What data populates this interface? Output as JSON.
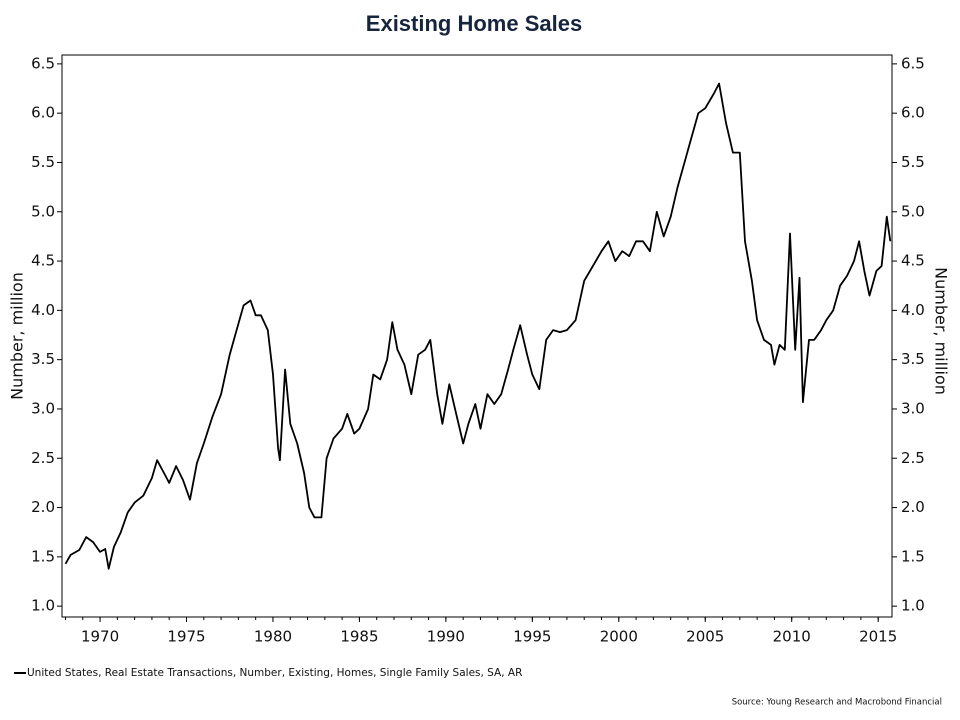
{
  "chart_data": {
    "type": "line",
    "title": "Existing Home Sales",
    "y_label": "Number, million",
    "y2_label": "Number, million",
    "source": "Source: Young Research and Macrobond Financial",
    "xlim": [
      1967.8,
      2015.8
    ],
    "ylim": [
      0.89,
      6.59
    ],
    "y2lim": [
      0.89,
      6.59
    ],
    "xticks": [
      1970,
      1975,
      1980,
      1985,
      1990,
      1995,
      2000,
      2005,
      2010,
      2015
    ],
    "yticks": [
      {
        "value": 1,
        "label": "1.0"
      },
      1.5,
      {
        "value": 2,
        "label": "2.0"
      },
      2.5,
      {
        "value": 3,
        "label": "3.0"
      },
      3.5,
      {
        "value": 4,
        "label": "4.0"
      },
      4.5,
      {
        "value": 5,
        "label": "5.0"
      },
      5.5,
      {
        "value": 6,
        "label": "6.0"
      },
      6.5
    ],
    "y2ticks": [
      {
        "value": 1,
        "label": "1.0"
      },
      1.5,
      {
        "value": 2,
        "label": "2.0"
      },
      2.5,
      {
        "value": 3,
        "label": "3.0"
      },
      3.5,
      {
        "value": 4,
        "label": "4.0"
      },
      4.5,
      {
        "value": 5,
        "label": "5.0"
      },
      5.5,
      {
        "value": 6,
        "label": "6.0"
      },
      6.5
    ],
    "x": [
      1968.0,
      1968.3,
      1968.8,
      1969.2,
      1969.6,
      1970.0,
      1970.3,
      1970.5,
      1970.8,
      1971.2,
      1971.6,
      1972.0,
      1972.5,
      1973.0,
      1973.3,
      1973.7,
      1974.0,
      1974.4,
      1974.8,
      1975.2,
      1975.6,
      1976.0,
      1976.5,
      1977.0,
      1977.5,
      1977.9,
      1978.3,
      1978.7,
      1979.0,
      1979.3,
      1979.7,
      1980.0,
      1980.3,
      1980.4,
      1980.7,
      1981.0,
      1981.4,
      1981.8,
      1982.1,
      1982.4,
      1982.8,
      1983.1,
      1983.5,
      1984.0,
      1984.3,
      1984.7,
      1985.0,
      1985.5,
      1985.8,
      1986.2,
      1986.6,
      1986.9,
      1987.2,
      1987.6,
      1988.0,
      1988.4,
      1988.8,
      1989.1,
      1989.5,
      1989.8,
      1990.2,
      1990.6,
      1991.0,
      1991.3,
      1991.7,
      1992.0,
      1992.4,
      1992.8,
      1993.2,
      1993.6,
      1993.9,
      1994.3,
      1994.7,
      1995.0,
      1995.4,
      1995.8,
      1996.2,
      1996.6,
      1997.0,
      1997.5,
      1998.0,
      1998.5,
      1999.0,
      1999.4,
      1999.8,
      2000.2,
      2000.6,
      2001.0,
      2001.4,
      2001.8,
      2002.2,
      2002.6,
      2003.0,
      2003.4,
      2003.8,
      2004.2,
      2004.6,
      2005.0,
      2005.5,
      2005.8,
      2006.2,
      2006.6,
      2007.0,
      2007.3,
      2007.7,
      2008.0,
      2008.4,
      2008.8,
      2009.0,
      2009.3,
      2009.6,
      2009.9,
      2010.2,
      2010.45,
      2010.65,
      2011.0,
      2011.3,
      2011.7,
      2012.0,
      2012.4,
      2012.8,
      2013.2,
      2013.6,
      2013.9,
      2014.2,
      2014.5,
      2014.9,
      2015.2,
      2015.5,
      2015.7
    ],
    "series": [
      {
        "name": "United States, Real Estate Transactions, Number, Existing, Homes, Single Family Sales, SA, AR",
        "color": "#000000",
        "values": [
          1.43,
          1.52,
          1.57,
          1.7,
          1.65,
          1.55,
          1.58,
          1.38,
          1.6,
          1.75,
          1.95,
          2.05,
          2.12,
          2.3,
          2.48,
          2.35,
          2.25,
          2.42,
          2.28,
          2.08,
          2.45,
          2.65,
          2.92,
          3.15,
          3.55,
          3.8,
          4.05,
          4.1,
          3.95,
          3.95,
          3.8,
          3.35,
          2.6,
          2.48,
          3.4,
          2.85,
          2.65,
          2.35,
          2.0,
          1.9,
          1.9,
          2.5,
          2.7,
          2.8,
          2.95,
          2.75,
          2.8,
          3.0,
          3.35,
          3.3,
          3.5,
          3.88,
          3.6,
          3.45,
          3.15,
          3.55,
          3.6,
          3.7,
          3.15,
          2.85,
          3.25,
          2.95,
          2.65,
          2.85,
          3.05,
          2.8,
          3.15,
          3.05,
          3.15,
          3.4,
          3.6,
          3.85,
          3.55,
          3.35,
          3.2,
          3.7,
          3.8,
          3.78,
          3.8,
          3.9,
          4.3,
          4.45,
          4.6,
          4.7,
          4.5,
          4.6,
          4.55,
          4.7,
          4.7,
          4.6,
          5.0,
          4.75,
          4.95,
          5.25,
          5.5,
          5.75,
          6.0,
          6.05,
          6.2,
          6.3,
          5.9,
          5.6,
          5.6,
          4.7,
          4.3,
          3.9,
          3.7,
          3.65,
          3.45,
          3.65,
          3.6,
          4.78,
          3.6,
          4.33,
          3.07,
          3.7,
          3.7,
          3.8,
          3.9,
          4.0,
          4.25,
          4.35,
          4.5,
          4.7,
          4.4,
          4.15,
          4.4,
          4.45,
          4.95,
          4.7
        ]
      }
    ]
  }
}
